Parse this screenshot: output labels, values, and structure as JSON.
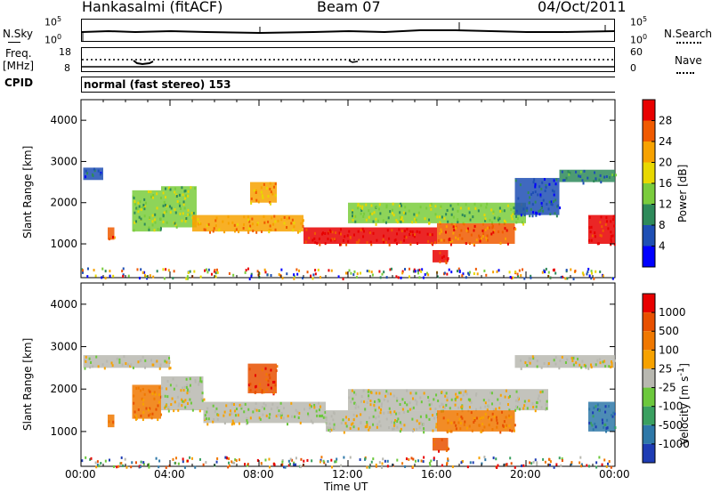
{
  "header": {
    "station": "Hankasalmi (fitACF)",
    "beam": "Beam 07",
    "date": "04/Oct/2011"
  },
  "top_strip": {
    "left_label": "N.Sky",
    "left_ticks": [
      "10^5",
      "10^0"
    ],
    "right_ticks": [
      "10^5",
      "10^0"
    ],
    "right_label": "N.Search"
  },
  "freq_strip": {
    "left_label_1": "Freq.",
    "left_label_2": "[MHz]",
    "left_ticks": [
      "18",
      "8"
    ],
    "right_ticks": [
      "60",
      "0"
    ],
    "right_label": "Nave"
  },
  "cpid": {
    "label": "CPID",
    "mode": "normal (fast stereo) 153"
  },
  "chart_data": [
    {
      "type": "heatmap",
      "name": "power",
      "ylabel": "Slant Range [km]",
      "yticks": [
        1000,
        2000,
        3000,
        4000
      ],
      "ylim": [
        180,
        4500
      ],
      "xticks": [
        "00:00",
        "04:00",
        "08:00",
        "12:00",
        "16:00",
        "20:00",
        "00:00"
      ],
      "xlim_hours": [
        0,
        24
      ],
      "colorbar_label": "Power [dB]",
      "colorbar_ticks": [
        "28",
        "24",
        "20",
        "16",
        "12",
        "8",
        "4"
      ],
      "colors": [
        "#0000ff",
        "#1e4fb4",
        "#2e8a5a",
        "#7acc3c",
        "#e8d800",
        "#f7a200",
        "#f05a00",
        "#e80000"
      ],
      "bands": [
        {
          "t0": 0.1,
          "t1": 1.0,
          "r0": 2550,
          "r1": 2850,
          "level": 1
        },
        {
          "t0": 1.2,
          "t1": 1.5,
          "r0": 1100,
          "r1": 1400,
          "level": 6
        },
        {
          "t0": 2.3,
          "t1": 3.6,
          "r0": 1300,
          "r1": 2300,
          "level": 3
        },
        {
          "t0": 3.6,
          "t1": 5.2,
          "r0": 1400,
          "r1": 2400,
          "level": 3
        },
        {
          "t0": 5.0,
          "t1": 10.0,
          "r0": 1300,
          "r1": 1700,
          "level": 5
        },
        {
          "t0": 7.6,
          "t1": 8.8,
          "r0": 2000,
          "r1": 2500,
          "level": 5
        },
        {
          "t0": 10.0,
          "t1": 16.0,
          "r0": 1000,
          "r1": 1400,
          "level": 7
        },
        {
          "t0": 12.0,
          "t1": 20.0,
          "r0": 1500,
          "r1": 2000,
          "level": 3
        },
        {
          "t0": 15.8,
          "t1": 16.5,
          "r0": 550,
          "r1": 850,
          "level": 7
        },
        {
          "t0": 16.0,
          "t1": 19.5,
          "r0": 1000,
          "r1": 1500,
          "level": 6
        },
        {
          "t0": 19.5,
          "t1": 21.5,
          "r0": 1700,
          "r1": 2600,
          "level": 1
        },
        {
          "t0": 21.5,
          "t1": 24.0,
          "r0": 2500,
          "r1": 2800,
          "level": 2
        },
        {
          "t0": 22.8,
          "t1": 24.0,
          "r0": 1000,
          "r1": 1700,
          "level": 7
        }
      ]
    },
    {
      "type": "heatmap",
      "name": "velocity",
      "ylabel": "Slant Range [km]",
      "yticks": [
        1000,
        2000,
        3000,
        4000
      ],
      "ylim": [
        180,
        4500
      ],
      "xticks": [
        "00:00",
        "04:00",
        "08:00",
        "12:00",
        "16:00",
        "20:00",
        "00:00"
      ],
      "xlim_hours": [
        0,
        24
      ],
      "xlabel": "Time UT",
      "colorbar_label": "Velocity [m s^-1]",
      "colorbar_ticks": [
        "1000",
        "500",
        "100",
        "25",
        "-25",
        "-100",
        "-500",
        "-1000"
      ],
      "colors": [
        "#1e3cb4",
        "#2e78a8",
        "#3aa060",
        "#6cc83c",
        "#b8b8b0",
        "#f7a200",
        "#f07800",
        "#e85000",
        "#e80000"
      ],
      "bands": [
        {
          "t0": 0.1,
          "t1": 4.0,
          "r0": 2500,
          "r1": 2800,
          "level": 4
        },
        {
          "t0": 1.2,
          "t1": 1.5,
          "r0": 1100,
          "r1": 1400,
          "level": 6
        },
        {
          "t0": 2.3,
          "t1": 3.6,
          "r0": 1300,
          "r1": 2100,
          "level": 6
        },
        {
          "t0": 3.6,
          "t1": 5.5,
          "r0": 1500,
          "r1": 2300,
          "level": 4
        },
        {
          "t0": 5.5,
          "t1": 11.0,
          "r0": 1200,
          "r1": 1700,
          "level": 4
        },
        {
          "t0": 7.5,
          "t1": 8.8,
          "r0": 1900,
          "r1": 2600,
          "level": 7
        },
        {
          "t0": 11.0,
          "t1": 16.0,
          "r0": 1000,
          "r1": 1500,
          "level": 4
        },
        {
          "t0": 12.0,
          "t1": 21.0,
          "r0": 1500,
          "r1": 2000,
          "level": 4
        },
        {
          "t0": 15.8,
          "t1": 16.5,
          "r0": 550,
          "r1": 850,
          "level": 7
        },
        {
          "t0": 16.0,
          "t1": 19.5,
          "r0": 1000,
          "r1": 1500,
          "level": 6
        },
        {
          "t0": 19.5,
          "t1": 24.0,
          "r0": 2500,
          "r1": 2800,
          "level": 4
        },
        {
          "t0": 22.8,
          "t1": 24.0,
          "r0": 1000,
          "r1": 1700,
          "level": 1
        }
      ]
    }
  ]
}
